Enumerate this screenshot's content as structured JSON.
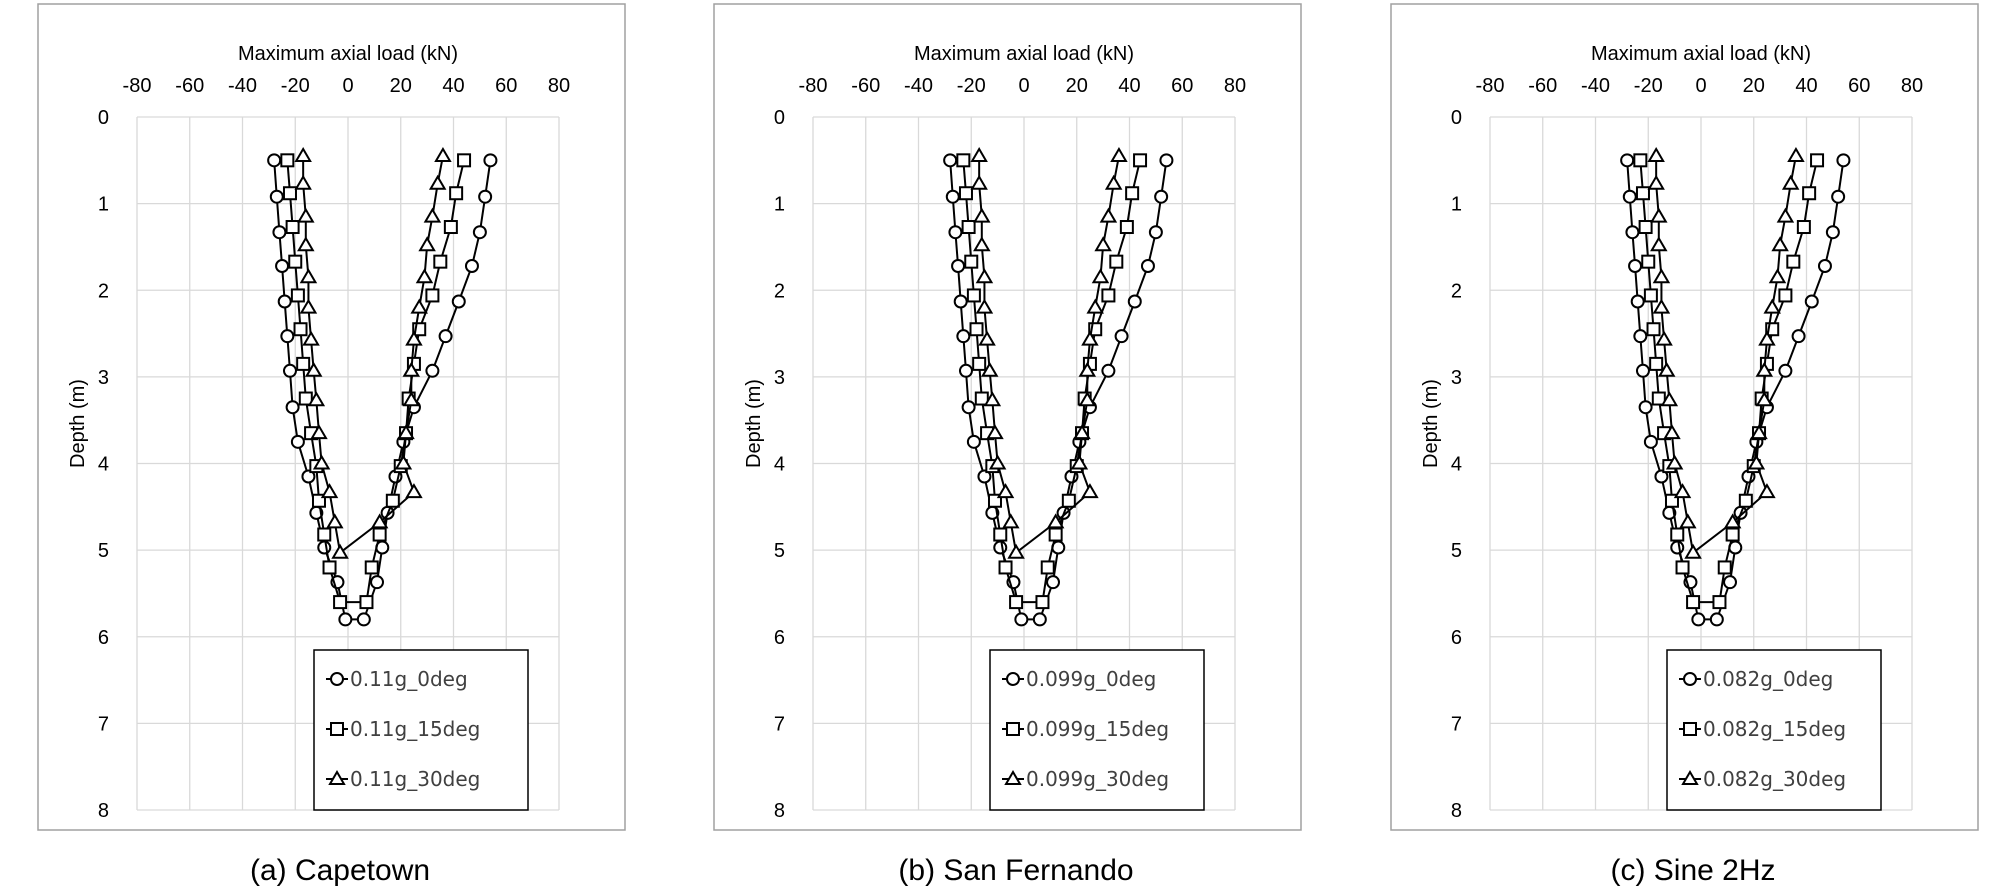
{
  "chart_data": [
    {
      "type": "line",
      "caption": "(a) Capetown",
      "xlabel": "Maximum axial load (kN)",
      "ylabel": "Depth (m)",
      "xlim": [
        -80,
        80
      ],
      "ylim": [
        0,
        8
      ],
      "x_ticks": [
        -80,
        -60,
        -40,
        -20,
        0,
        20,
        40,
        60,
        80
      ],
      "y_ticks": [
        0,
        1,
        2,
        3,
        4,
        5,
        6,
        7,
        8
      ],
      "x_axis_position": "top",
      "y_reversed": true,
      "grid": true,
      "legend_position": "bottom-right",
      "series": [
        {
          "name": "0.11g_0deg",
          "marker": "circle",
          "points": [
            [
              -28,
              0.5
            ],
            [
              -27,
              0.92
            ],
            [
              -26,
              1.33
            ],
            [
              -25,
              1.72
            ],
            [
              -24,
              2.13
            ],
            [
              -23,
              2.53
            ],
            [
              -22,
              2.93
            ],
            [
              -21,
              3.35
            ],
            [
              -19,
              3.75
            ],
            [
              -15,
              4.15
            ],
            [
              -12,
              4.57
            ],
            [
              -9,
              4.97
            ],
            [
              -4,
              5.37
            ],
            [
              -1,
              5.8
            ],
            [
              6,
              5.8
            ],
            [
              11,
              5.37
            ],
            [
              13,
              4.97
            ],
            [
              15,
              4.57
            ],
            [
              18,
              4.15
            ],
            [
              21,
              3.75
            ],
            [
              25,
              3.35
            ],
            [
              32,
              2.93
            ],
            [
              37,
              2.53
            ],
            [
              42,
              2.13
            ],
            [
              47,
              1.72
            ],
            [
              50,
              1.33
            ],
            [
              52,
              0.92
            ],
            [
              54,
              0.5
            ]
          ]
        },
        {
          "name": "0.11g_15deg",
          "marker": "square",
          "points": [
            [
              -23,
              0.5
            ],
            [
              -22,
              0.88
            ],
            [
              -21,
              1.27
            ],
            [
              -20,
              1.67
            ],
            [
              -19,
              2.06
            ],
            [
              -18,
              2.45
            ],
            [
              -17,
              2.85
            ],
            [
              -16,
              3.25
            ],
            [
              -14,
              3.65
            ],
            [
              -12,
              4.03
            ],
            [
              -11,
              4.43
            ],
            [
              -9,
              4.82
            ],
            [
              -7,
              5.2
            ],
            [
              -3,
              5.6
            ],
            [
              7,
              5.6
            ],
            [
              9,
              5.2
            ],
            [
              12,
              4.82
            ],
            [
              17,
              4.43
            ],
            [
              20,
              4.03
            ],
            [
              22,
              3.65
            ],
            [
              23,
              3.25
            ],
            [
              25,
              2.85
            ],
            [
              27,
              2.45
            ],
            [
              32,
              2.06
            ],
            [
              35,
              1.67
            ],
            [
              39,
              1.27
            ],
            [
              41,
              0.88
            ],
            [
              44,
              0.5
            ]
          ]
        },
        {
          "name": "0.11g_30deg",
          "marker": "triangle",
          "points": [
            [
              -17,
              0.45
            ],
            [
              -17,
              0.77
            ],
            [
              -16,
              1.15
            ],
            [
              -16,
              1.48
            ],
            [
              -15,
              1.85
            ],
            [
              -15,
              2.2
            ],
            [
              -14,
              2.57
            ],
            [
              -13,
              2.93
            ],
            [
              -12,
              3.27
            ],
            [
              -11,
              3.65
            ],
            [
              -10,
              4.0
            ],
            [
              -7,
              4.33
            ],
            [
              -5,
              4.68
            ],
            [
              -3,
              5.03
            ],
            [
              12,
              4.68
            ],
            [
              25,
              4.33
            ],
            [
              21,
              4.0
            ],
            [
              22,
              3.65
            ],
            [
              24,
              3.27
            ],
            [
              24,
              2.93
            ],
            [
              25,
              2.57
            ],
            [
              27,
              2.2
            ],
            [
              29,
              1.85
            ],
            [
              30,
              1.48
            ],
            [
              32,
              1.15
            ],
            [
              34,
              0.77
            ],
            [
              36,
              0.45
            ]
          ]
        }
      ]
    },
    {
      "type": "line",
      "caption": "(b) San Fernando",
      "xlabel": "Maximum axial load (kN)",
      "ylabel": "Depth (m)",
      "xlim": [
        -80,
        80
      ],
      "ylim": [
        0,
        8
      ],
      "x_ticks": [
        -80,
        -60,
        -40,
        -20,
        0,
        20,
        40,
        60,
        80
      ],
      "y_ticks": [
        0,
        1,
        2,
        3,
        4,
        5,
        6,
        7,
        8
      ],
      "x_axis_position": "top",
      "y_reversed": true,
      "grid": true,
      "legend_position": "bottom-right",
      "series": [
        {
          "name": "0.099g_0deg",
          "marker": "circle",
          "points": [
            [
              -28,
              0.5
            ],
            [
              -27,
              0.92
            ],
            [
              -26,
              1.33
            ],
            [
              -25,
              1.72
            ],
            [
              -24,
              2.13
            ],
            [
              -23,
              2.53
            ],
            [
              -22,
              2.93
            ],
            [
              -21,
              3.35
            ],
            [
              -19,
              3.75
            ],
            [
              -15,
              4.15
            ],
            [
              -12,
              4.57
            ],
            [
              -9,
              4.97
            ],
            [
              -4,
              5.37
            ],
            [
              -1,
              5.8
            ],
            [
              6,
              5.8
            ],
            [
              11,
              5.37
            ],
            [
              13,
              4.97
            ],
            [
              15,
              4.57
            ],
            [
              18,
              4.15
            ],
            [
              21,
              3.75
            ],
            [
              25,
              3.35
            ],
            [
              32,
              2.93
            ],
            [
              37,
              2.53
            ],
            [
              42,
              2.13
            ],
            [
              47,
              1.72
            ],
            [
              50,
              1.33
            ],
            [
              52,
              0.92
            ],
            [
              54,
              0.5
            ]
          ]
        },
        {
          "name": "0.099g_15deg",
          "marker": "square",
          "points": [
            [
              -23,
              0.5
            ],
            [
              -22,
              0.88
            ],
            [
              -21,
              1.27
            ],
            [
              -20,
              1.67
            ],
            [
              -19,
              2.06
            ],
            [
              -18,
              2.45
            ],
            [
              -17,
              2.85
            ],
            [
              -16,
              3.25
            ],
            [
              -14,
              3.65
            ],
            [
              -12,
              4.03
            ],
            [
              -11,
              4.43
            ],
            [
              -9,
              4.82
            ],
            [
              -7,
              5.2
            ],
            [
              -3,
              5.6
            ],
            [
              7,
              5.6
            ],
            [
              9,
              5.2
            ],
            [
              12,
              4.82
            ],
            [
              17,
              4.43
            ],
            [
              20,
              4.03
            ],
            [
              22,
              3.65
            ],
            [
              23,
              3.25
            ],
            [
              25,
              2.85
            ],
            [
              27,
              2.45
            ],
            [
              32,
              2.06
            ],
            [
              35,
              1.67
            ],
            [
              39,
              1.27
            ],
            [
              41,
              0.88
            ],
            [
              44,
              0.5
            ]
          ]
        },
        {
          "name": "0.099g_30deg",
          "marker": "triangle",
          "points": [
            [
              -17,
              0.45
            ],
            [
              -17,
              0.77
            ],
            [
              -16,
              1.15
            ],
            [
              -16,
              1.48
            ],
            [
              -15,
              1.85
            ],
            [
              -15,
              2.2
            ],
            [
              -14,
              2.57
            ],
            [
              -13,
              2.93
            ],
            [
              -12,
              3.27
            ],
            [
              -11,
              3.65
            ],
            [
              -10,
              4.0
            ],
            [
              -7,
              4.33
            ],
            [
              -5,
              4.68
            ],
            [
              -3,
              5.03
            ],
            [
              12,
              4.68
            ],
            [
              25,
              4.33
            ],
            [
              21,
              4.0
            ],
            [
              22,
              3.65
            ],
            [
              24,
              3.27
            ],
            [
              24,
              2.93
            ],
            [
              25,
              2.57
            ],
            [
              27,
              2.2
            ],
            [
              29,
              1.85
            ],
            [
              30,
              1.48
            ],
            [
              32,
              1.15
            ],
            [
              34,
              0.77
            ],
            [
              36,
              0.45
            ]
          ]
        }
      ]
    },
    {
      "type": "line",
      "caption": "(c) Sine 2Hz",
      "xlabel": "Maximum axial load (kN)",
      "ylabel": "Depth (m)",
      "xlim": [
        -80,
        80
      ],
      "ylim": [
        0,
        8
      ],
      "x_ticks": [
        -80,
        -60,
        -40,
        -20,
        0,
        20,
        40,
        60,
        80
      ],
      "y_ticks": [
        0,
        1,
        2,
        3,
        4,
        5,
        6,
        7,
        8
      ],
      "x_axis_position": "top",
      "y_reversed": true,
      "grid": true,
      "legend_position": "bottom-right",
      "series": [
        {
          "name": "0.082g_0deg",
          "marker": "circle",
          "points": [
            [
              -28,
              0.5
            ],
            [
              -27,
              0.92
            ],
            [
              -26,
              1.33
            ],
            [
              -25,
              1.72
            ],
            [
              -24,
              2.13
            ],
            [
              -23,
              2.53
            ],
            [
              -22,
              2.93
            ],
            [
              -21,
              3.35
            ],
            [
              -19,
              3.75
            ],
            [
              -15,
              4.15
            ],
            [
              -12,
              4.57
            ],
            [
              -9,
              4.97
            ],
            [
              -4,
              5.37
            ],
            [
              -1,
              5.8
            ],
            [
              6,
              5.8
            ],
            [
              11,
              5.37
            ],
            [
              13,
              4.97
            ],
            [
              15,
              4.57
            ],
            [
              18,
              4.15
            ],
            [
              21,
              3.75
            ],
            [
              25,
              3.35
            ],
            [
              32,
              2.93
            ],
            [
              37,
              2.53
            ],
            [
              42,
              2.13
            ],
            [
              47,
              1.72
            ],
            [
              50,
              1.33
            ],
            [
              52,
              0.92
            ],
            [
              54,
              0.5
            ]
          ]
        },
        {
          "name": "0.082g_15deg",
          "marker": "square",
          "points": [
            [
              -23,
              0.5
            ],
            [
              -22,
              0.88
            ],
            [
              -21,
              1.27
            ],
            [
              -20,
              1.67
            ],
            [
              -19,
              2.06
            ],
            [
              -18,
              2.45
            ],
            [
              -17,
              2.85
            ],
            [
              -16,
              3.25
            ],
            [
              -14,
              3.65
            ],
            [
              -12,
              4.03
            ],
            [
              -11,
              4.43
            ],
            [
              -9,
              4.82
            ],
            [
              -7,
              5.2
            ],
            [
              -3,
              5.6
            ],
            [
              7,
              5.6
            ],
            [
              9,
              5.2
            ],
            [
              12,
              4.82
            ],
            [
              17,
              4.43
            ],
            [
              20,
              4.03
            ],
            [
              22,
              3.65
            ],
            [
              23,
              3.25
            ],
            [
              25,
              2.85
            ],
            [
              27,
              2.45
            ],
            [
              32,
              2.06
            ],
            [
              35,
              1.67
            ],
            [
              39,
              1.27
            ],
            [
              41,
              0.88
            ],
            [
              44,
              0.5
            ]
          ]
        },
        {
          "name": "0.082g_30deg",
          "marker": "triangle",
          "points": [
            [
              -17,
              0.45
            ],
            [
              -17,
              0.77
            ],
            [
              -16,
              1.15
            ],
            [
              -16,
              1.48
            ],
            [
              -15,
              1.85
            ],
            [
              -15,
              2.2
            ],
            [
              -14,
              2.57
            ],
            [
              -13,
              2.93
            ],
            [
              -12,
              3.27
            ],
            [
              -11,
              3.65
            ],
            [
              -10,
              4.0
            ],
            [
              -7,
              4.33
            ],
            [
              -5,
              4.68
            ],
            [
              -3,
              5.03
            ],
            [
              12,
              4.68
            ],
            [
              25,
              4.33
            ],
            [
              21,
              4.0
            ],
            [
              22,
              3.65
            ],
            [
              24,
              3.27
            ],
            [
              24,
              2.93
            ],
            [
              25,
              2.57
            ],
            [
              27,
              2.2
            ],
            [
              29,
              1.85
            ],
            [
              30,
              1.48
            ],
            [
              32,
              1.15
            ],
            [
              34,
              0.77
            ],
            [
              36,
              0.45
            ]
          ]
        }
      ]
    }
  ]
}
